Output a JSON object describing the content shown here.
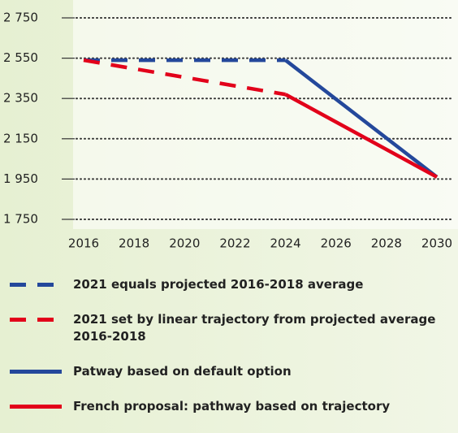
{
  "chart_data": {
    "type": "line",
    "xlim": [
      2016,
      2030
    ],
    "xticks": [
      2016,
      2018,
      2020,
      2022,
      2024,
      2026,
      2028,
      2030
    ],
    "ylim": [
      1750,
      2750
    ],
    "yticks": [
      {
        "value": 1750,
        "label": "1 750"
      },
      {
        "value": 1950,
        "label": "1 950"
      },
      {
        "value": 2150,
        "label": "2 150"
      },
      {
        "value": 2350,
        "label": "2 350"
      },
      {
        "value": 2550,
        "label": "2 550"
      },
      {
        "value": 2750,
        "label": "2 750"
      }
    ],
    "grid": true,
    "series": [
      {
        "name": "2021 equals projected 2016-2018 average",
        "color": "#24489b",
        "dashed": true,
        "x": [
          2016,
          2024
        ],
        "values": [
          2540,
          2540
        ]
      },
      {
        "name": "2021 set by linear trajectory from projected average 2016-2018",
        "color": "#e2001a",
        "dashed": true,
        "x": [
          2016,
          2024
        ],
        "values": [
          2540,
          2370
        ]
      },
      {
        "name": "Patway based on default option",
        "color": "#24489b",
        "dashed": false,
        "x": [
          2024,
          2030
        ],
        "values": [
          2540,
          1960
        ]
      },
      {
        "name": "French proposal: pathway based on trajectory",
        "color": "#e2001a",
        "dashed": false,
        "x": [
          2024,
          2030
        ],
        "values": [
          2370,
          1960
        ]
      }
    ]
  }
}
